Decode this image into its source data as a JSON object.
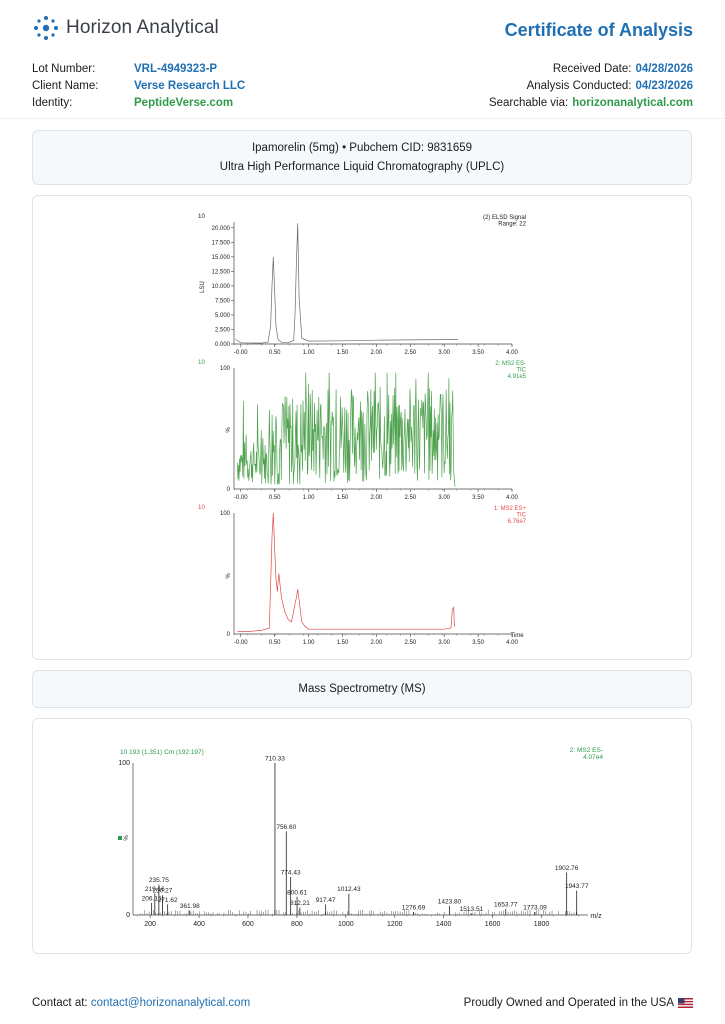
{
  "header": {
    "brand_name": "Horizon Analytical",
    "title": "Certificate of Analysis"
  },
  "meta_left": [
    {
      "key": "Lot Number:",
      "value": "VRL-4949323-P"
    },
    {
      "key": "Client Name:",
      "value": "Verse Research LLC"
    },
    {
      "key": "Identity:",
      "value": "PeptideVerse.com"
    }
  ],
  "meta_right": [
    {
      "key": "Received Date:",
      "value": "04/28/2026"
    },
    {
      "key": "Analysis Conducted:",
      "value": "04/23/2026"
    },
    {
      "key": "Searchable via:",
      "value": "horizonanalytical.com"
    }
  ],
  "uplc_header": {
    "line1": "Ipamorelin (5mg) • Pubchem CID: 9831659",
    "line2": "Ultra High Performance Liquid Chromatography (UPLC)"
  },
  "ms_header": {
    "title": "Mass Spectrometry (MS)"
  },
  "footer": {
    "contact_label": "Contact at:",
    "contact_email": "contact@horizonanalytical.com",
    "made_in": "Proudly Owned and Operated in the USA"
  },
  "colors": {
    "accent_blue": "#1f6fb2",
    "accent_green": "#2f9a4b",
    "elsd_trace": "#6a6a6a",
    "es_minus_trace": "#4ea24e",
    "es_plus_trace": "#e34b4b"
  },
  "chart_data": [
    {
      "type": "line",
      "panel": "ELSD",
      "corner_label": "10",
      "legend": [
        "(2) ELSD Signal",
        "Range: 22"
      ],
      "ylabel": "LSU",
      "xlim": [
        -0.1,
        4.0
      ],
      "ylim": [
        0,
        21.0
      ],
      "x_ticks": [
        "-0.00",
        "0.50",
        "1.00",
        "1.50",
        "2.00",
        "2.50",
        "3.00",
        "3.50",
        "4.00"
      ],
      "y_ticks": [
        "0.000",
        "2.500",
        "5.000",
        "7.500",
        "10.000",
        "12.500",
        "15.000",
        "17.500",
        "20.000"
      ],
      "y_tick_values": [
        0,
        2.5,
        5,
        7.5,
        10,
        12.5,
        15,
        17.5,
        20
      ],
      "x_tick_values": [
        0,
        0.5,
        1.0,
        1.5,
        2.0,
        2.5,
        3.0,
        3.5,
        4.0
      ],
      "x": [
        -0.08,
        -0.05,
        0.0,
        0.3,
        0.4,
        0.44,
        0.46,
        0.48,
        0.5,
        0.52,
        0.55,
        0.6,
        0.7,
        0.78,
        0.8,
        0.82,
        0.84,
        0.86,
        0.9,
        1.0,
        1.5,
        2.0,
        2.5,
        3.0,
        3.2
      ],
      "y": [
        0.8,
        0.6,
        0.2,
        0.15,
        0.3,
        3.0,
        10.0,
        15.0,
        9.0,
        3.0,
        0.8,
        0.3,
        0.2,
        0.6,
        5.0,
        14.0,
        20.8,
        8.0,
        1.0,
        0.5,
        0.55,
        0.65,
        0.7,
        0.75,
        0.8
      ]
    },
    {
      "type": "line",
      "panel": "ES-",
      "corner_label": "10",
      "legend": [
        "2: MS2 ES-",
        "TIC",
        "4.91e5"
      ],
      "ylabel": "%",
      "xlim": [
        -0.1,
        4.0
      ],
      "ylim": [
        0,
        100
      ],
      "x_ticks": [
        "-0.00",
        "0.50",
        "1.00",
        "1.50",
        "2.00",
        "2.50",
        "3.00",
        "3.50",
        "4.00"
      ],
      "x_tick_values": [
        0,
        0.5,
        1.0,
        1.5,
        2.0,
        2.5,
        3.0,
        3.5,
        4.0
      ],
      "y_ticks": [
        "0",
        "100"
      ],
      "x_start": -0.05,
      "x_step": 0.01,
      "trend": "noisy signal 10–96%, ends at 3.15"
    },
    {
      "type": "line",
      "panel": "ES+",
      "corner_label": "10",
      "legend": [
        "1: MS2 ES+",
        "TIC",
        "6.76e7"
      ],
      "ylabel": "%",
      "xlabel": "Time",
      "xlim": [
        -0.1,
        4.0
      ],
      "ylim": [
        0,
        100
      ],
      "x_ticks": [
        "-0.00",
        "0.50",
        "1.00",
        "1.50",
        "2.00",
        "2.50",
        "3.00",
        "3.50",
        "4.00"
      ],
      "x_tick_values": [
        0,
        0.5,
        1.0,
        1.5,
        2.0,
        2.5,
        3.0,
        3.5,
        4.0
      ],
      "y_ticks": [
        "0",
        "100"
      ],
      "x": [
        -0.05,
        0.1,
        0.3,
        0.42,
        0.44,
        0.46,
        0.48,
        0.5,
        0.52,
        0.54,
        0.56,
        0.6,
        0.65,
        0.7,
        0.75,
        0.8,
        0.82,
        0.84,
        0.86,
        0.9,
        0.95,
        1.0,
        1.5,
        2.0,
        2.5,
        3.0,
        3.1,
        3.12,
        3.14,
        3.15
      ],
      "y": [
        2,
        2,
        3,
        5,
        40,
        80,
        100,
        70,
        45,
        35,
        50,
        30,
        18,
        12,
        10,
        25,
        30,
        37,
        28,
        10,
        6,
        4,
        4,
        4,
        4,
        4,
        5,
        20,
        22,
        6
      ]
    },
    {
      "type": "bar",
      "panel": "MS spectrum",
      "corner_label": "10 193 (1.351) Cm (192:197)",
      "legend": [
        "2: MS2 ES-",
        "4.07e4"
      ],
      "ylabel": "%",
      "xlabel": "m/z",
      "xlim": [
        130,
        1990
      ],
      "ylim": [
        0,
        100
      ],
      "x_ticks": [
        "200",
        "400",
        "600",
        "800",
        "1000",
        "1200",
        "1400",
        "1600",
        "1800"
      ],
      "x_tick_values": [
        200,
        400,
        600,
        800,
        1000,
        1200,
        1400,
        1600,
        1800
      ],
      "y_ticks": [
        "0",
        "100"
      ],
      "peaks": [
        {
          "mz": 206.15,
          "label": "206.15",
          "intensity": 8
        },
        {
          "mz": 219.16,
          "label": "219.16",
          "intensity": 14
        },
        {
          "mz": 235.75,
          "label": "235.75",
          "intensity": 20
        },
        {
          "mz": 250.27,
          "label": "250.27",
          "intensity": 13
        },
        {
          "mz": 271.62,
          "label": "271.62",
          "intensity": 7
        },
        {
          "mz": 361.98,
          "label": "361.98",
          "intensity": 3
        },
        {
          "mz": 710.33,
          "label": "710.33",
          "intensity": 100
        },
        {
          "mz": 756.6,
          "label": "756.60",
          "intensity": 55
        },
        {
          "mz": 774.43,
          "label": "774.43",
          "intensity": 25
        },
        {
          "mz": 800.61,
          "label": "800.61",
          "intensity": 12
        },
        {
          "mz": 812.21,
          "label": "812.21",
          "intensity": 5
        },
        {
          "mz": 917.47,
          "label": "917.47",
          "intensity": 7
        },
        {
          "mz": 1012.43,
          "label": "1012.43",
          "intensity": 14
        },
        {
          "mz": 1276.69,
          "label": "1276.69",
          "intensity": 2
        },
        {
          "mz": 1423.8,
          "label": "1423.80",
          "intensity": 6
        },
        {
          "mz": 1513.51,
          "label": "1513.51",
          "intensity": 1
        },
        {
          "mz": 1653.77,
          "label": "1653.77",
          "intensity": 4
        },
        {
          "mz": 1773.09,
          "label": "1773.09",
          "intensity": 2
        },
        {
          "mz": 1902.76,
          "label": "1902.76",
          "intensity": 28
        },
        {
          "mz": 1943.77,
          "label": "1943.77",
          "intensity": 16
        }
      ]
    }
  ]
}
